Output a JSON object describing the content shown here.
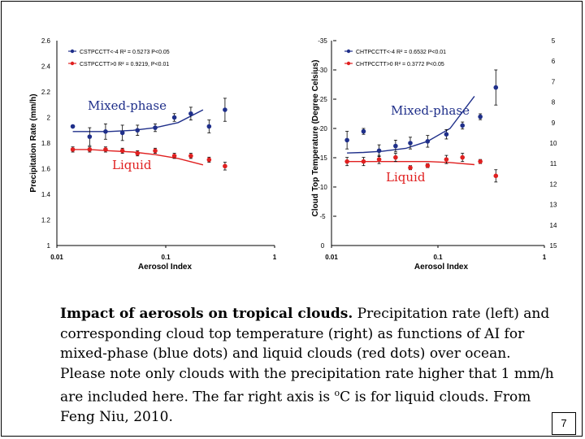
{
  "chart_data": [
    {
      "type": "scatter",
      "title": "",
      "xlabel": "Aerosol Index",
      "ylabel": "Precipitation Rate (mm/h)",
      "xscale": "log",
      "xlim": [
        0.01,
        1
      ],
      "ylim": [
        1,
        2.6
      ],
      "x_ticks": [
        "0.01",
        "0.1",
        "1"
      ],
      "y_ticks": [
        "1",
        "1.2",
        "1.4",
        "1.6",
        "1.8",
        "2",
        "2.2",
        "2.4",
        "2.6"
      ],
      "legend_placement": "top-left",
      "series": [
        {
          "name": "CSTPCCTT<-4   R² = 0.5273 P<0.05",
          "label": "Mixed-phase",
          "color": "#1f2f8a",
          "x": [
            0.014,
            0.02,
            0.028,
            0.04,
            0.055,
            0.08,
            0.12,
            0.17,
            0.25,
            0.35
          ],
          "y": [
            1.93,
            1.85,
            1.89,
            1.88,
            1.9,
            1.92,
            2.0,
            2.03,
            1.93,
            2.06
          ],
          "err": [
            0.0,
            0.07,
            0.06,
            0.06,
            0.04,
            0.03,
            0.03,
            0.05,
            0.05,
            0.09
          ],
          "fit": [
            1.89,
            1.89,
            1.89,
            1.9,
            1.92,
            1.96,
            2.06
          ]
        },
        {
          "name": "CSTPCCTT>0   R² = 0.9219, P<0.01",
          "label": "Liquid",
          "color": "#e02020",
          "x": [
            0.014,
            0.02,
            0.028,
            0.04,
            0.055,
            0.08,
            0.12,
            0.17,
            0.25,
            0.35
          ],
          "y": [
            1.75,
            1.75,
            1.75,
            1.74,
            1.72,
            1.74,
            1.7,
            1.7,
            1.67,
            1.62
          ],
          "err": [
            0.02,
            0.02,
            0.02,
            0.02,
            0.02,
            0.02,
            0.02,
            0.02,
            0.02,
            0.03
          ],
          "fit": [
            1.75,
            1.75,
            1.74,
            1.73,
            1.71,
            1.68,
            1.63
          ]
        }
      ]
    },
    {
      "type": "scatter",
      "title": "",
      "xlabel": "Aerosol Index",
      "ylabel": "Cloud Top Temperature (Degree Celsius)",
      "xscale": "log",
      "xlim": [
        0.01,
        1
      ],
      "ylim": [
        0,
        -35
      ],
      "x_ticks": [
        "0.01",
        "0.1",
        "1"
      ],
      "y_ticks": [
        "0",
        "-5",
        "-10",
        "-15",
        "-20",
        "-25",
        "-30",
        "-35"
      ],
      "y2_label": "",
      "y2_ticks": [
        "5",
        "6",
        "7",
        "8",
        "9",
        "10",
        "11",
        "12",
        "13",
        "14",
        "15"
      ],
      "legend_placement": "top-left",
      "series": [
        {
          "name": "CHTPCCTT<-4   R² = 0.6532 P<0.01",
          "label": "Mixed-phase",
          "color": "#1f2f8a",
          "x": [
            0.014,
            0.02,
            0.028,
            0.04,
            0.055,
            0.08,
            0.12,
            0.17,
            0.25,
            0.35
          ],
          "y": [
            -18.0,
            -19.5,
            -16.2,
            -17.0,
            -17.5,
            -17.8,
            -19.0,
            -20.5,
            -22.0,
            -27.0
          ],
          "err": [
            1.5,
            0.5,
            1.0,
            1.0,
            1.0,
            1.0,
            0.8,
            0.6,
            0.5,
            3.0
          ],
          "fit": [
            -15.8,
            -15.9,
            -16.1,
            -16.6,
            -17.8,
            -20.0,
            -25.5
          ]
        },
        {
          "name": "CHTPCCTT>0   R² = 0.3772 P<0.05",
          "label": "Liquid",
          "color": "#e02020",
          "x": [
            0.014,
            0.02,
            0.028,
            0.04,
            0.055,
            0.08,
            0.12,
            0.17,
            0.25,
            0.35
          ],
          "y": [
            10.9,
            10.9,
            10.8,
            10.7,
            11.2,
            11.1,
            10.8,
            10.7,
            10.9,
            11.6
          ],
          "err": [
            0.2,
            0.2,
            0.2,
            0.2,
            0.1,
            0.1,
            0.2,
            0.2,
            0.1,
            0.3
          ],
          "fit": [
            10.9,
            10.9,
            10.9,
            10.9,
            10.9,
            10.95,
            11.05
          ]
        }
      ]
    }
  ],
  "fit_x": [
    0.014,
    0.02,
    0.03,
    0.05,
    0.08,
    0.13,
    0.22
  ],
  "labels": {
    "left_mixed": "Mixed-phase",
    "left_liquid": "Liquid",
    "right_mixed": "Mixed-phase",
    "right_liquid": "Liquid"
  },
  "caption": {
    "bold": "Impact of aerosols on tropical clouds.",
    "text": "  Precipitation rate (left) and corresponding cloud top temperature (right) as functions of AI for mixed-phase (blue dots) and liquid clouds (red dots) over ocean. Please note only clouds with the precipitation rate higher that 1 mm/h are included here.  The far right axis is ",
    "superscript": "o",
    "text_end": "C is for liquid clouds. From Feng Niu, 2010."
  },
  "page_number": "7"
}
